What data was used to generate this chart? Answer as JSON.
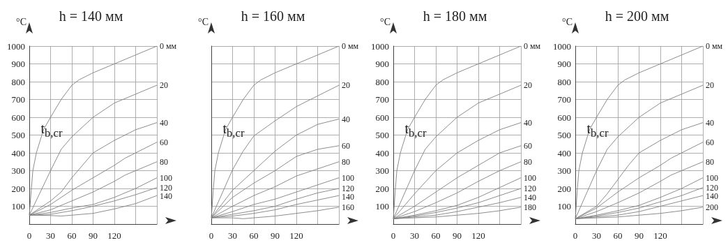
{
  "chart_data": [
    {
      "type": "line",
      "title": "h = 140 мм",
      "ylabel": "°C",
      "xlim": [
        0,
        180
      ],
      "ylim": [
        0,
        1000
      ],
      "xticks": [
        {
          "value": 0,
          "label": "0"
        },
        30,
        60,
        90,
        120,
        {
          "value": 150,
          "label": null
        },
        {
          "value": 180,
          "label": null
        }
      ],
      "yticks": [
        100,
        200,
        300,
        400,
        500,
        600,
        700,
        800,
        900,
        1000
      ],
      "grid": true,
      "marker": "none",
      "annotations": [
        "t$_{b,cr}$"
      ],
      "series": [
        {
          "name": "0 мм",
          "color": "#808080",
          "x": [
            0,
            3,
            5,
            10,
            20,
            30,
            45,
            60,
            70,
            90,
            120,
            150,
            180
          ],
          "values": [
            50,
            200,
            300,
            400,
            530,
            600,
            700,
            780,
            810,
            850,
            900,
            950,
            1000
          ]
        },
        {
          "name": "20",
          "color": "#808080",
          "x": [
            0,
            30,
            45,
            60,
            90,
            120,
            150,
            180
          ],
          "values": [
            50,
            300,
            420,
            490,
            600,
            680,
            730,
            780
          ]
        },
        {
          "name": "40",
          "color": "#808080",
          "x": [
            0,
            30,
            45,
            60,
            75,
            90,
            120,
            150,
            180
          ],
          "values": [
            50,
            130,
            180,
            260,
            330,
            400,
            470,
            530,
            570
          ]
        },
        {
          "name": "60",
          "color": "#808080",
          "x": [
            0,
            30,
            60,
            90,
            120,
            135,
            150,
            180
          ],
          "values": [
            50,
            110,
            190,
            260,
            330,
            370,
            400,
            460
          ]
        },
        {
          "name": "80",
          "color": "#808080",
          "x": [
            0,
            30,
            60,
            90,
            120,
            135,
            150,
            180
          ],
          "values": [
            50,
            80,
            130,
            180,
            240,
            275,
            300,
            350
          ]
        },
        {
          "name": "100",
          "color": "#808080",
          "x": [
            0,
            30,
            60,
            90,
            120,
            150,
            180
          ],
          "values": [
            50,
            65,
            90,
            110,
            150,
            200,
            260
          ]
        },
        {
          "name": "120",
          "color": "#808080",
          "x": [
            0,
            30,
            60,
            90,
            120,
            150,
            180
          ],
          "values": [
            50,
            55,
            75,
            100,
            130,
            165,
            205
          ]
        },
        {
          "name": "140",
          "color": "#808080",
          "x": [
            0,
            30,
            45,
            60,
            90,
            120,
            150,
            180
          ],
          "values": [
            50,
            48,
            45,
            50,
            60,
            85,
            115,
            160
          ]
        }
      ]
    },
    {
      "type": "line",
      "title": "h = 160 мм",
      "ylabel": "°C",
      "xlim": [
        0,
        180
      ],
      "ylim": [
        0,
        1000
      ],
      "xticks": [
        {
          "value": 0,
          "label": "0"
        },
        30,
        60,
        90,
        120,
        {
          "value": 150,
          "label": null
        },
        {
          "value": 180,
          "label": null
        }
      ],
      "yticks": [
        100,
        200,
        300,
        400,
        500,
        600,
        700,
        800,
        900,
        1000
      ],
      "tick_labels": "x",
      "grid": true,
      "marker": "none",
      "annotations": [
        "t$_{b,cr}$"
      ],
      "series": [
        {
          "name": "0 мм",
          "color": "#808080",
          "x": [
            0,
            3,
            5,
            10,
            20,
            30,
            45,
            60,
            70,
            90,
            120,
            150,
            180
          ],
          "values": [
            35,
            200,
            300,
            400,
            530,
            600,
            700,
            780,
            810,
            850,
            900,
            950,
            1000
          ]
        },
        {
          "name": "20",
          "color": "#808080",
          "x": [
            0,
            30,
            45,
            60,
            90,
            120,
            150,
            180
          ],
          "values": [
            35,
            305,
            410,
            495,
            580,
            660,
            720,
            780
          ]
        },
        {
          "name": "40",
          "color": "#808080",
          "x": [
            0,
            30,
            60,
            90,
            120,
            150,
            180
          ],
          "values": [
            35,
            190,
            300,
            410,
            500,
            560,
            590
          ]
        },
        {
          "name": "60",
          "color": "#808080",
          "x": [
            0,
            30,
            60,
            90,
            120,
            150,
            180
          ],
          "values": [
            35,
            150,
            230,
            300,
            380,
            420,
            440
          ]
        },
        {
          "name": "80",
          "color": "#808080",
          "x": [
            0,
            30,
            60,
            90,
            120,
            150,
            180
          ],
          "values": [
            35,
            100,
            160,
            210,
            270,
            310,
            350
          ]
        },
        {
          "name": "100",
          "color": "#808080",
          "x": [
            0,
            30,
            60,
            90,
            120,
            150,
            180
          ],
          "values": [
            35,
            70,
            110,
            140,
            180,
            220,
            260
          ]
        },
        {
          "name": "120",
          "color": "#808080",
          "x": [
            0,
            30,
            60,
            90,
            120,
            150,
            180
          ],
          "values": [
            35,
            55,
            75,
            100,
            140,
            175,
            200
          ]
        },
        {
          "name": "140",
          "color": "#808080",
          "x": [
            0,
            30,
            60,
            90,
            120,
            150,
            180
          ],
          "values": [
            35,
            45,
            60,
            80,
            110,
            135,
            160
          ]
        },
        {
          "name": "160",
          "color": "#808080",
          "x": [
            0,
            30,
            45,
            60,
            90,
            120,
            150,
            180
          ],
          "values": [
            35,
            35,
            30,
            35,
            45,
            60,
            75,
            95
          ]
        }
      ]
    },
    {
      "type": "line",
      "title": "h = 180 мм",
      "ylabel": "°C",
      "xlim": [
        0,
        180
      ],
      "ylim": [
        0,
        1000
      ],
      "xticks": [
        {
          "value": 0,
          "label": "0"
        },
        30,
        60,
        90,
        120,
        {
          "value": 150,
          "label": null
        },
        {
          "value": 180,
          "label": null
        }
      ],
      "yticks": [
        100,
        200,
        300,
        400,
        500,
        600,
        700,
        800,
        900,
        1000
      ],
      "grid": true,
      "marker": "none",
      "annotations": [
        "t$_{b,cr}$"
      ],
      "series": [
        {
          "name": "0 мм",
          "color": "#808080",
          "x": [
            0,
            3,
            5,
            10,
            20,
            30,
            45,
            60,
            70,
            90,
            120,
            150,
            180
          ],
          "values": [
            30,
            200,
            300,
            400,
            530,
            600,
            700,
            780,
            810,
            850,
            900,
            950,
            1000
          ]
        },
        {
          "name": "20",
          "color": "#808080",
          "x": [
            0,
            30,
            45,
            60,
            90,
            120,
            150,
            180
          ],
          "values": [
            30,
            300,
            420,
            490,
            600,
            680,
            730,
            780
          ]
        },
        {
          "name": "40",
          "color": "#808080",
          "x": [
            0,
            30,
            60,
            90,
            120,
            150,
            180
          ],
          "values": [
            30,
            170,
            300,
            400,
            470,
            530,
            570
          ]
        },
        {
          "name": "60",
          "color": "#808080",
          "x": [
            0,
            30,
            60,
            90,
            120,
            150,
            180
          ],
          "values": [
            30,
            100,
            180,
            260,
            330,
            400,
            440
          ]
        },
        {
          "name": "80",
          "color": "#808080",
          "x": [
            0,
            30,
            60,
            90,
            120,
            135,
            150,
            180
          ],
          "values": [
            30,
            70,
            120,
            175,
            240,
            270,
            300,
            350
          ]
        },
        {
          "name": "100",
          "color": "#808080",
          "x": [
            0,
            30,
            60,
            90,
            120,
            150,
            180
          ],
          "values": [
            30,
            50,
            75,
            105,
            150,
            205,
            260
          ]
        },
        {
          "name": "120",
          "color": "#808080",
          "x": [
            0,
            30,
            60,
            90,
            120,
            150,
            180
          ],
          "values": [
            30,
            45,
            65,
            90,
            120,
            160,
            200
          ]
        },
        {
          "name": "140",
          "color": "#808080",
          "x": [
            0,
            30,
            60,
            90,
            120,
            150,
            180
          ],
          "values": [
            30,
            40,
            50,
            70,
            95,
            120,
            150
          ]
        },
        {
          "name": "180",
          "color": "#808080",
          "x": [
            0,
            30,
            60,
            90,
            120,
            150,
            180
          ],
          "values": [
            30,
            35,
            40,
            50,
            60,
            75,
            95
          ]
        }
      ]
    },
    {
      "type": "line",
      "title": "h = 200 мм",
      "ylabel": "°C",
      "xlim": [
        0,
        180
      ],
      "ylim": [
        0,
        1000
      ],
      "xticks": [
        {
          "value": 0,
          "label": "0"
        },
        30,
        60,
        90,
        120,
        {
          "value": 150,
          "label": null
        },
        {
          "value": 180,
          "label": null
        }
      ],
      "yticks": [
        100,
        200,
        300,
        400,
        500,
        600,
        700,
        800,
        900,
        1000
      ],
      "grid": true,
      "marker": "none",
      "annotations": [
        "t$_{b,cr}$"
      ],
      "series": [
        {
          "name": "0 мм",
          "color": "#808080",
          "x": [
            0,
            3,
            5,
            10,
            20,
            30,
            45,
            60,
            70,
            90,
            120,
            150,
            180
          ],
          "values": [
            30,
            200,
            300,
            400,
            530,
            600,
            700,
            780,
            810,
            850,
            900,
            950,
            1000
          ]
        },
        {
          "name": "20",
          "color": "#808080",
          "x": [
            0,
            30,
            45,
            60,
            90,
            120,
            150,
            180
          ],
          "values": [
            30,
            300,
            420,
            490,
            600,
            680,
            730,
            780
          ]
        },
        {
          "name": "40",
          "color": "#808080",
          "x": [
            0,
            30,
            45,
            60,
            75,
            90,
            120,
            150,
            180
          ],
          "values": [
            30,
            100,
            170,
            250,
            330,
            400,
            470,
            530,
            570
          ]
        },
        {
          "name": "60",
          "color": "#808080",
          "x": [
            0,
            30,
            60,
            90,
            120,
            135,
            150,
            180
          ],
          "values": [
            30,
            90,
            180,
            260,
            330,
            370,
            400,
            460
          ]
        },
        {
          "name": "80",
          "color": "#808080",
          "x": [
            0,
            30,
            60,
            90,
            120,
            135,
            150,
            180
          ],
          "values": [
            30,
            70,
            120,
            175,
            240,
            275,
            300,
            350
          ]
        },
        {
          "name": "100",
          "color": "#808080",
          "x": [
            0,
            30,
            60,
            90,
            120,
            150,
            180
          ],
          "values": [
            30,
            50,
            75,
            105,
            150,
            200,
            260
          ]
        },
        {
          "name": "120",
          "color": "#808080",
          "x": [
            0,
            30,
            60,
            90,
            120,
            150,
            180
          ],
          "values": [
            30,
            45,
            65,
            90,
            125,
            160,
            205
          ]
        },
        {
          "name": "140",
          "color": "#808080",
          "x": [
            0,
            30,
            60,
            90,
            120,
            150,
            180
          ],
          "values": [
            30,
            40,
            50,
            70,
            100,
            130,
            160
          ]
        },
        {
          "name": "200",
          "color": "#808080",
          "x": [
            0,
            30,
            60,
            90,
            120,
            150,
            180
          ],
          "values": [
            30,
            35,
            40,
            50,
            60,
            75,
            95
          ]
        }
      ]
    }
  ]
}
